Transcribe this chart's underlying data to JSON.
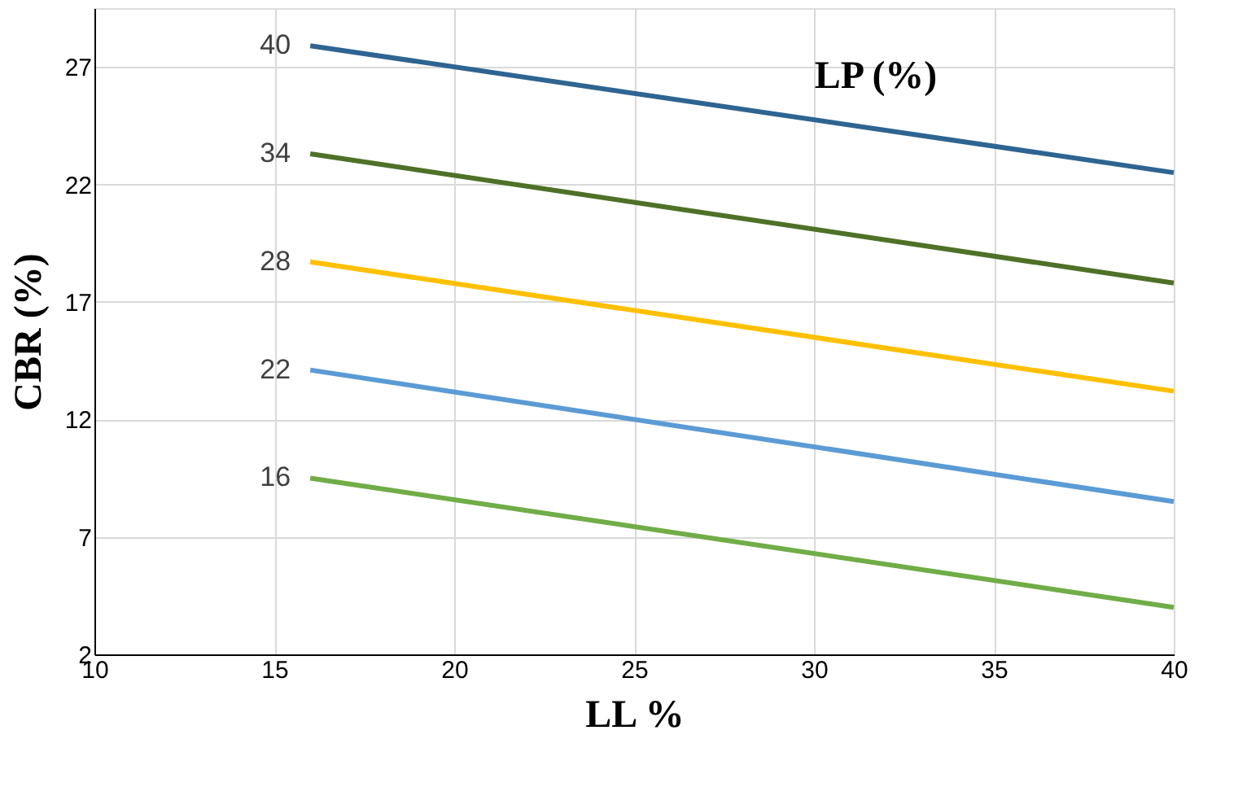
{
  "chart_data": {
    "type": "line",
    "xlabel": "LL %",
    "ylabel": "CBR (%)",
    "annotations": [
      "LP (%)"
    ],
    "x": [
      16,
      40
    ],
    "xlim": [
      10,
      40
    ],
    "xticks": [
      10,
      15,
      20,
      25,
      30,
      35,
      40
    ],
    "ylim": [
      2,
      29.5
    ],
    "yticks": [
      2,
      7,
      12,
      17,
      22,
      27
    ],
    "grid": true,
    "legend": false,
    "marker": "none",
    "line_style": "solid",
    "series": [
      {
        "name": "40",
        "color": "#2e6491",
        "values": [
          27.9,
          22.5
        ]
      },
      {
        "name": "34",
        "color": "#4e7127",
        "values": [
          23.3,
          17.8
        ]
      },
      {
        "name": "28",
        "color": "#ffc000",
        "values": [
          18.7,
          13.2
        ]
      },
      {
        "name": "22",
        "color": "#5b9bd5",
        "values": [
          14.1,
          8.5
        ]
      },
      {
        "name": "16",
        "color": "#70ad47",
        "values": [
          9.5,
          4.0
        ]
      }
    ]
  }
}
